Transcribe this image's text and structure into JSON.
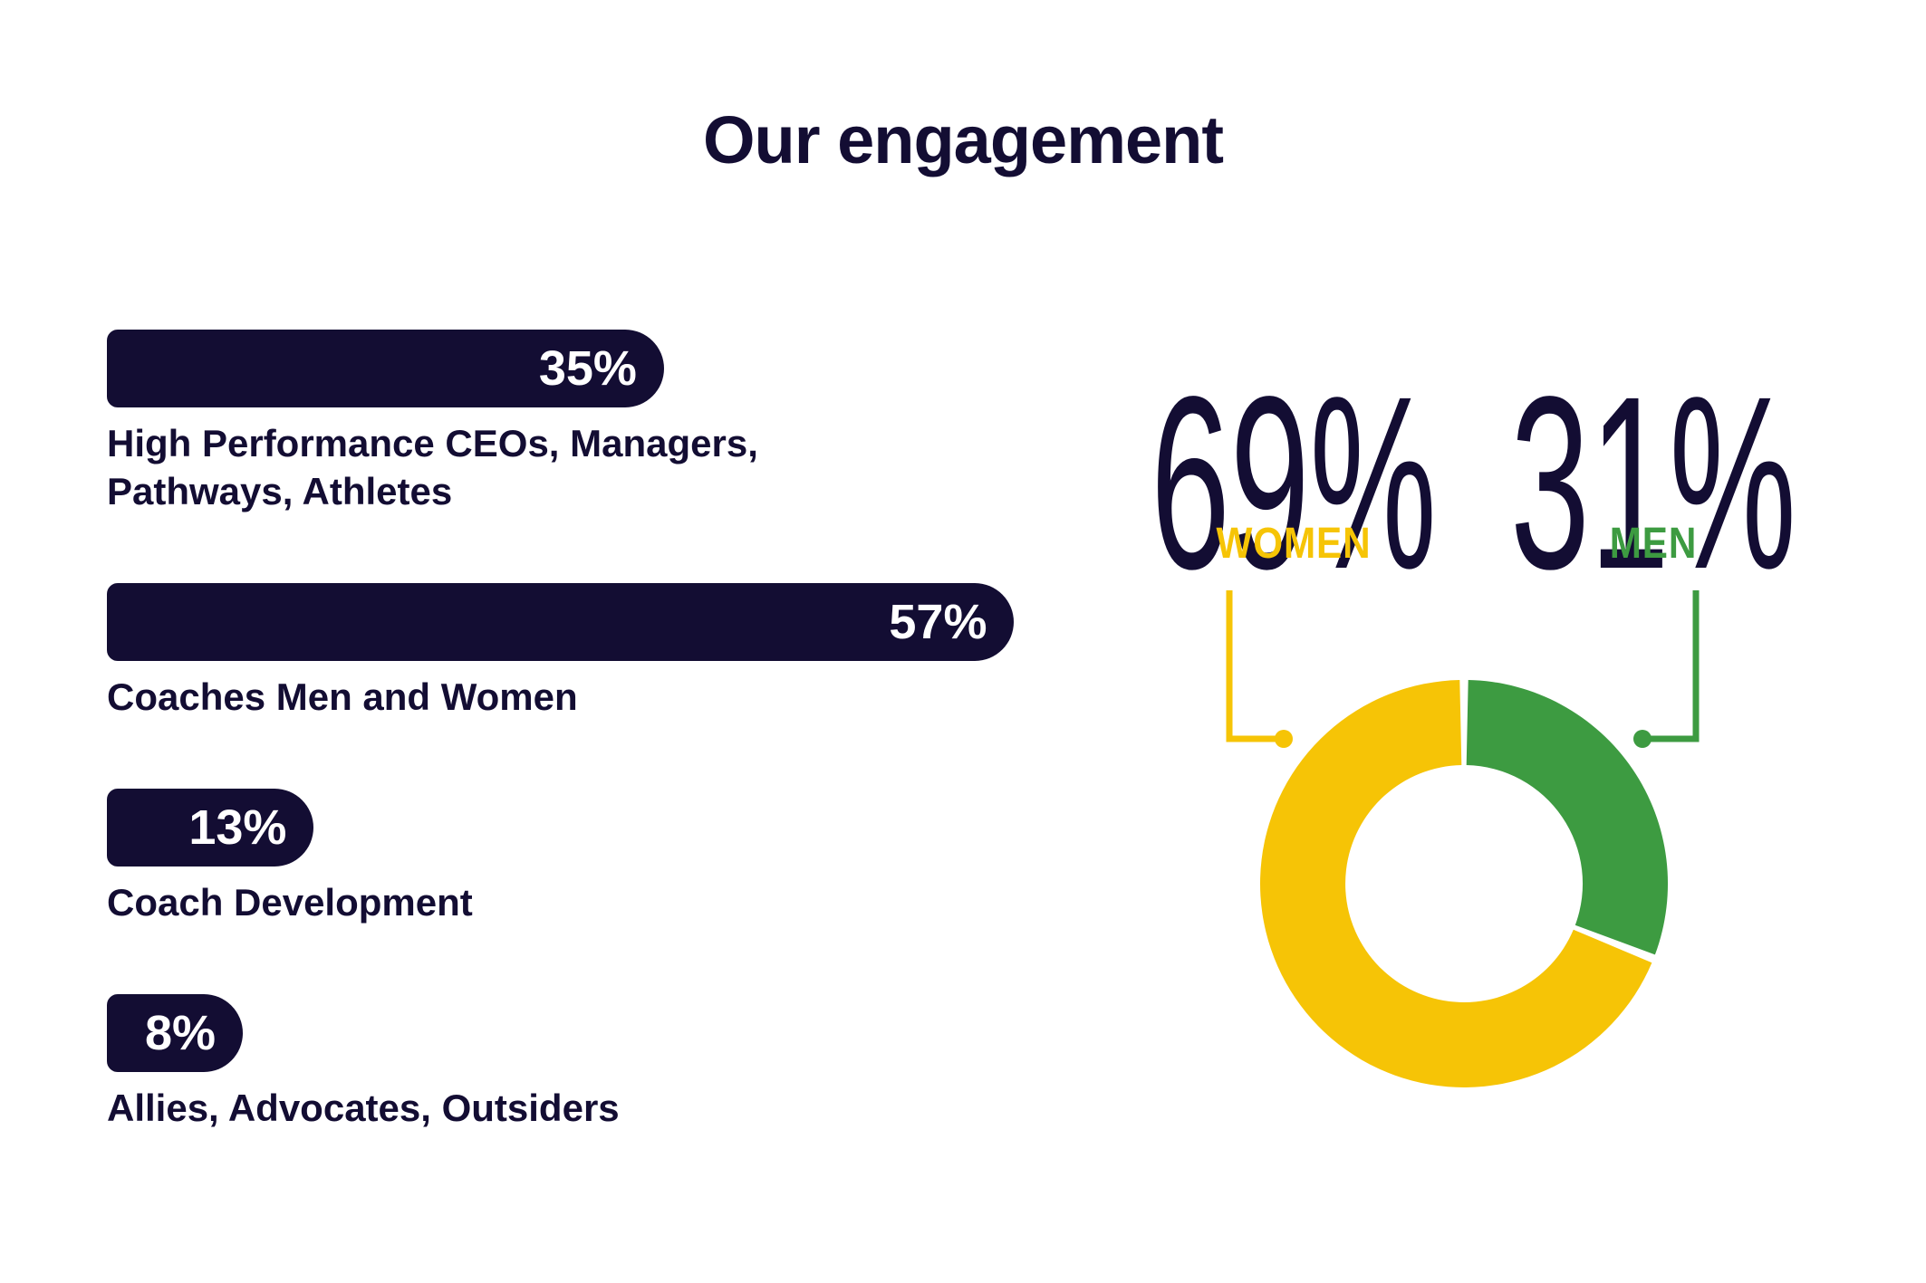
{
  "title": "Our engagement",
  "colors": {
    "navy": "#130D33",
    "yellow": "#F6C406",
    "green": "#3D9B41",
    "bar_value_text": "#FFFFFF",
    "background": "#FFFFFF"
  },
  "chart_data": [
    {
      "type": "bar",
      "orientation": "horizontal",
      "title": "Our engagement",
      "categories": [
        "High Performance CEOs, Managers, Pathways, Athletes",
        "Coaches Men and Women",
        "Coach Development",
        "Allies, Advocates, Outsiders"
      ],
      "values": [
        35,
        57,
        13,
        8
      ],
      "value_labels": [
        "35%",
        "57%",
        "13%",
        "8%"
      ],
      "xlim": [
        0,
        57
      ],
      "grid": false,
      "bar_color": "#130D33",
      "value_label_color": "#FFFFFF",
      "value_label_position": "inside-right",
      "bar_shape": "pill-right-cap"
    },
    {
      "type": "pie",
      "subtype": "donut",
      "categories": [
        "WOMEN",
        "MEN"
      ],
      "values": [
        69,
        31
      ],
      "value_labels": [
        "69%",
        "31%"
      ],
      "colors": [
        "#F6C406",
        "#3D9B41"
      ],
      "start_angle": "12-o-clock",
      "direction": "clockwise",
      "inner_radius_ratio": 0.58,
      "segment_gap_deg": 2.4,
      "legend_position": "above-with-connector-lines",
      "legend_colors": [
        "#F6C406",
        "#3D9B41"
      ]
    }
  ]
}
